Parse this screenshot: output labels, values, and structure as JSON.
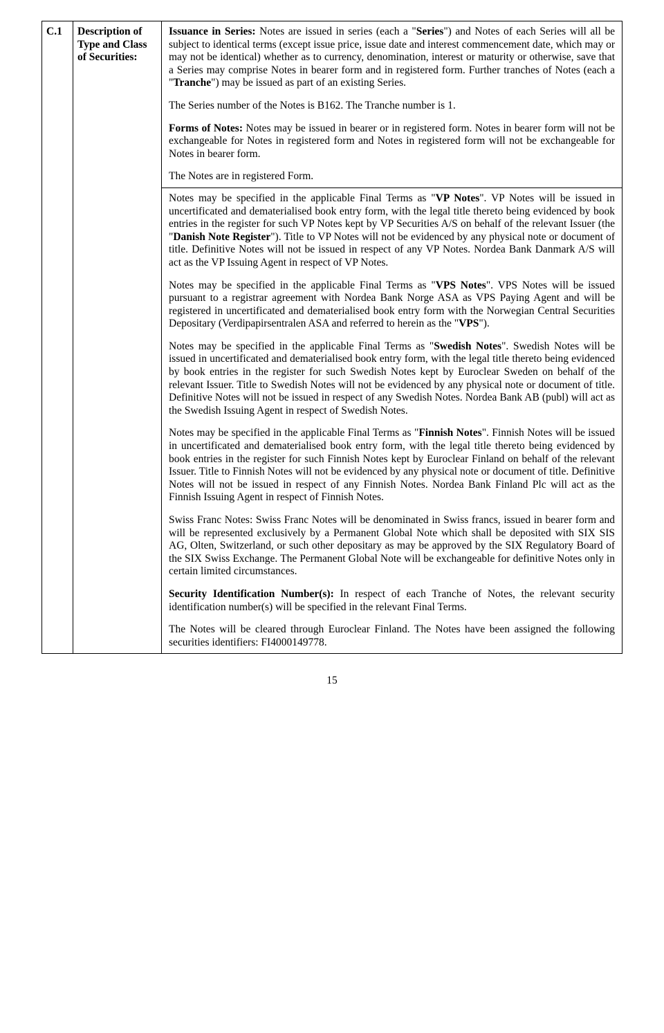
{
  "row_code": "C.1",
  "row_label": "Description of Type and Class of Securities:",
  "top": {
    "p1_pre": "Issuance in Series:",
    "p1_mid1": "  Notes are issued in series (each a \"",
    "p1_bold1": "Series",
    "p1_mid2": "\") and Notes of each Series will all be subject to identical terms (except issue price, issue date and interest commencement date, which may or may not be identical) whether as to currency, denomination, interest or maturity or otherwise, save that a Series may comprise Notes in bearer form and in registered form.  Further tranches of Notes (each a \"",
    "p1_bold2": "Tranche",
    "p1_end": "\") may be issued as part of an existing Series.",
    "p2": "The Series number of the Notes is B162.  The Tranche number is 1.",
    "p3_pre": "Forms of Notes:",
    "p3_end": "  Notes may be issued in bearer or in registered form.  Notes in bearer form will not be exchangeable for Notes in registered form and Notes in registered form will not be exchangeable for Notes in bearer form.",
    "p4": "The Notes are in registered Form."
  },
  "bottom": {
    "p1_a": "Notes may be specified in the applicable Final Terms as \"",
    "p1_b1": "VP Notes",
    "p1_b": "\".  VP Notes will be issued in uncertificated and dematerialised book entry form, with the legal title thereto being evidenced by book entries in the register for such VP Notes kept by VP Securities A/S on behalf of the relevant Issuer (the \"",
    "p1_b2": "Danish Note Register",
    "p1_c": "\").  Title to VP Notes will not be evidenced by any physical note or document of title.  Definitive Notes will not be issued in respect of any VP Notes.  Nordea Bank Danmark A/S will act as the VP Issuing Agent in respect of VP Notes.",
    "p2_a": "Notes may be specified in the applicable Final Terms as \"",
    "p2_b1": "VPS Notes",
    "p2_b": "\".  VPS Notes will be issued pursuant to a registrar agreement with Nordea Bank Norge ASA as VPS Paying Agent and will be registered in uncertificated and dematerialised book entry form with the Norwegian Central Securities Depositary (Verdipapirsentralen ASA and referred to herein as the \"",
    "p2_b2": "VPS",
    "p2_c": "\").",
    "p3_a": "Notes may be specified in the applicable Final Terms as \"",
    "p3_b1": "Swedish Notes",
    "p3_b": "\".  Swedish Notes will be issued in uncertificated and dematerialised book entry form, with the legal title thereto being evidenced by book entries in the register for such Swedish Notes kept by Euroclear Sweden on behalf of the relevant Issuer.  Title to Swedish Notes will not be evidenced by any physical note or document of title.  Definitive Notes will not be issued in respect of any Swedish Notes.  Nordea Bank AB (publ) will act as the Swedish Issuing Agent in respect of Swedish Notes.",
    "p4_a": "Notes may be specified in the applicable Final Terms as \"",
    "p4_b1": "Finnish Notes",
    "p4_b": "\". Finnish Notes will be issued in uncertificated and dematerialised book entry form, with the legal title thereto being evidenced by book entries in the register for such Finnish Notes kept by Euroclear Finland on behalf of the relevant Issuer.  Title to Finnish Notes will not be evidenced by any physical note or document of title.  Definitive Notes will not be issued in respect of any Finnish Notes.  Nordea Bank Finland Plc will act as the Finnish Issuing Agent in respect of Finnish Notes.",
    "p5": "Swiss Franc Notes: Swiss Franc Notes will be denominated in Swiss francs, issued in bearer form and will be represented exclusively by a Permanent Global Note which shall be deposited with SIX SIS AG, Olten, Switzerland, or such other depositary as may be approved by the SIX Regulatory Board of the SIX Swiss Exchange. The Permanent Global Note will be exchangeable for definitive Notes only in certain limited circumstances.",
    "p6_pre": "Security Identification Number(s):",
    "p6_end": "  In respect of each Tranche of Notes, the relevant security identification number(s) will be specified in the relevant Final Terms.",
    "p7": "The Notes will be cleared through Euroclear Finland.  The Notes have been assigned the following securities identifiers: FI4000149778."
  },
  "page_number": "15"
}
